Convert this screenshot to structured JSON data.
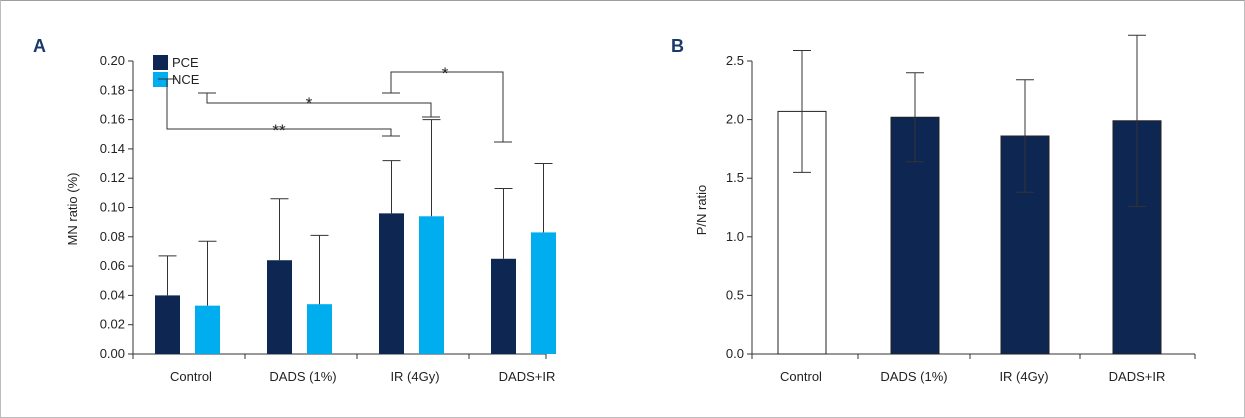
{
  "colors": {
    "pce": "#0d2752",
    "nce": "#00aeef",
    "control_b": "#ffffff",
    "axis": "#333333"
  },
  "chart_data": [
    {
      "type": "bar",
      "panel_label": "A",
      "ylabel": "MN ratio (%)",
      "ylim": [
        0,
        0.2
      ],
      "yticks": [
        "0.00",
        "0.02",
        "0.04",
        "0.06",
        "0.08",
        "0.10",
        "0.12",
        "0.14",
        "0.16",
        "0.18",
        "0.20"
      ],
      "categories": [
        "Control",
        "DADS (1%)",
        "IR (4Gy)",
        "DADS+IR"
      ],
      "legend_position": "top-left",
      "series": [
        {
          "name": "PCE",
          "values": [
            0.04,
            0.064,
            0.096,
            0.065
          ],
          "error": [
            0.027,
            0.042,
            0.036,
            0.048
          ]
        },
        {
          "name": "NCE",
          "values": [
            0.033,
            0.034,
            0.094,
            0.083
          ],
          "error": [
            0.044,
            0.047,
            0.066,
            0.047
          ]
        }
      ],
      "annotations": [
        {
          "text": "**",
          "from": "Control",
          "to": "IR (4Gy)",
          "series": "PCE"
        },
        {
          "text": "*",
          "from": "Control",
          "to": "IR (4Gy)",
          "series": "NCE"
        },
        {
          "text": "*",
          "from": "IR (4Gy)",
          "to": "DADS+IR",
          "series": "PCE"
        }
      ]
    },
    {
      "type": "bar",
      "panel_label": "B",
      "ylabel": "P/N ratio",
      "ylim": [
        0,
        2.5
      ],
      "yticks": [
        "0.0",
        "0.5",
        "1.0",
        "1.5",
        "2.0",
        "2.5"
      ],
      "categories": [
        "Control",
        "DADS (1%)",
        "IR (4Gy)",
        "DADS+IR"
      ],
      "values": [
        2.07,
        2.02,
        1.86,
        1.99
      ],
      "error": [
        0.52,
        0.38,
        0.48,
        0.73
      ]
    }
  ]
}
